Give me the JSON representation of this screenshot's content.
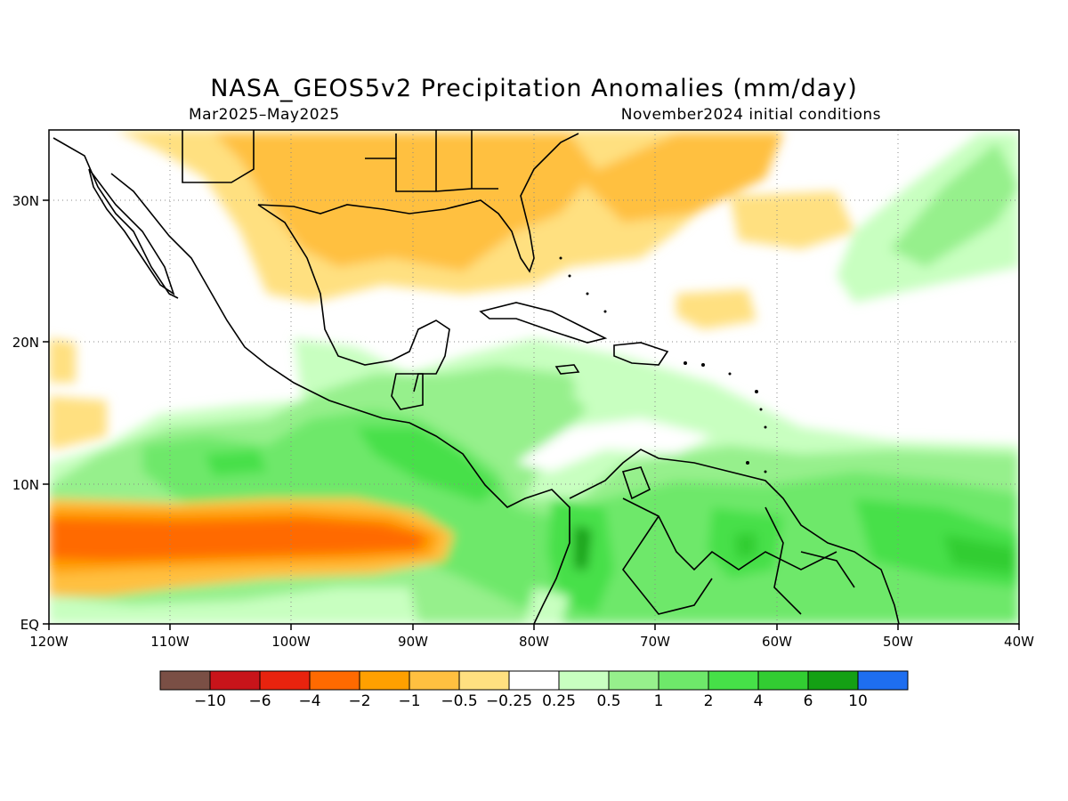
{
  "title": "NASA_GEOS5v2 Precipitation Anomalies (mm/day)",
  "period": "Mar2025–May2025",
  "init": "November2024 initial conditions",
  "lon_labels": [
    "120W",
    "110W",
    "100W",
    "90W",
    "80W",
    "70W",
    "60W",
    "50W",
    "40W"
  ],
  "lat_labels": [
    "EQ",
    "10N",
    "20N",
    "30N"
  ],
  "colorbar": {
    "colors": [
      "#7a4f45",
      "#c8141a",
      "#e8230e",
      "#ff6a00",
      "#ffa000",
      "#ffc040",
      "#ffe080",
      "#ffffff",
      "#c8ffc0",
      "#96f08c",
      "#6ee86a",
      "#46e048",
      "#32cd32",
      "#14a014",
      "#1e6ef0"
    ],
    "labels": [
      "−10",
      "−6",
      "−4",
      "−2",
      "−1",
      "−0.5",
      "−0.25",
      "0.25",
      "0.5",
      "1",
      "2",
      "4",
      "6",
      "10"
    ]
  }
}
